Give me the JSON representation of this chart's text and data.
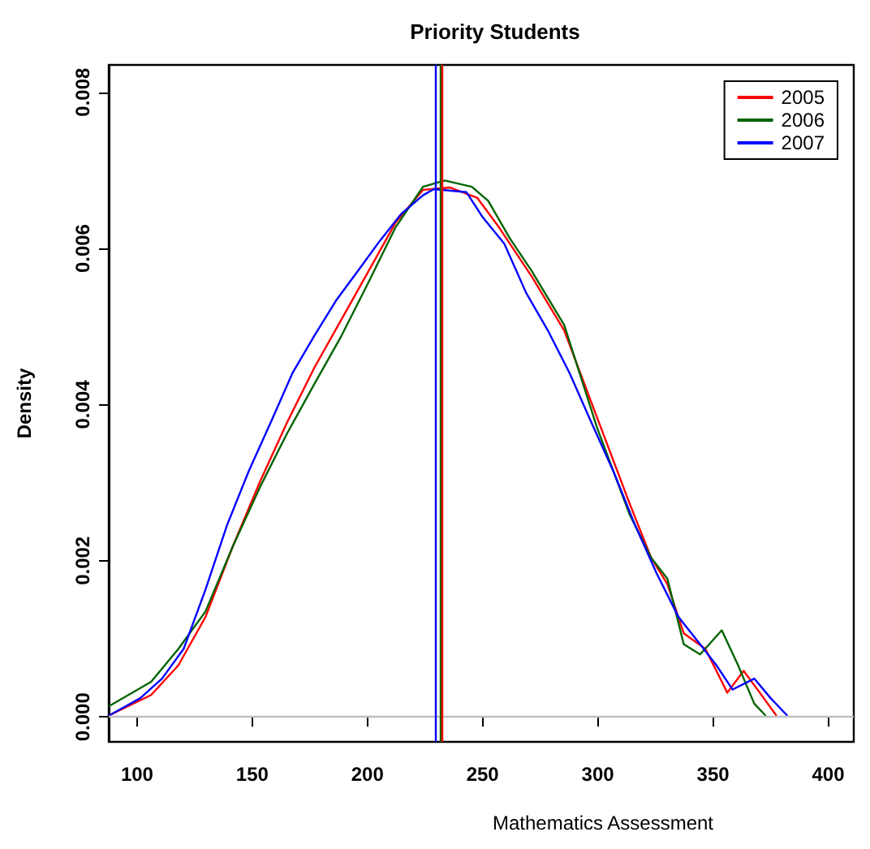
{
  "chart_data": {
    "type": "line",
    "title": "Priority Students",
    "xlabel": "Mathematics Assessment",
    "ylabel": "Density",
    "xlim": [
      87.7,
      411.1
    ],
    "xticks": [
      100,
      150,
      200,
      250,
      300,
      350,
      400
    ],
    "ylim": [
      -0.00032,
      0.00835
    ],
    "yticks": [
      {
        "value": 0,
        "label": "0.000"
      },
      {
        "value": 0.002,
        "label": "0.002"
      },
      {
        "value": 0.004,
        "label": "0.004"
      },
      {
        "value": 0.006,
        "label": "0.006"
      },
      {
        "value": 0.008,
        "label": "0.008"
      }
    ],
    "grid": false,
    "legend": "top right",
    "marker": "none",
    "line_style": "solid",
    "ref_lines": [
      {
        "axis": "y",
        "value": 0,
        "color": "#bebebe"
      },
      {
        "axis": "x",
        "value": 229.4,
        "color": "#0000ff"
      },
      {
        "axis": "x",
        "value": 231.5,
        "color": "#006400"
      },
      {
        "axis": "x",
        "value": 232.3,
        "color": "#ff0000"
      }
    ],
    "series": [
      {
        "name": "2005",
        "color": "#ff0000",
        "x": [
          88,
          106.1,
          117.9,
          129.7,
          141.5,
          153.3,
          165.1,
          176.9,
          188.7,
          200.5,
          212.2,
          224.1,
          235.9,
          247.6,
          257.1,
          271.3,
          285.4,
          299.6,
          313.7,
          323.1,
          330.2,
          337.3,
          346.7,
          356.2,
          363.3,
          370.3,
          377.4
        ],
        "values": [
          2e-05,
          0.00028,
          0.00066,
          0.00128,
          0.00218,
          0.00301,
          0.00377,
          0.00447,
          0.00509,
          0.00571,
          0.00633,
          0.00675,
          0.00678,
          0.00665,
          0.00627,
          0.00564,
          0.00495,
          0.00384,
          0.00274,
          0.00204,
          0.0017,
          0.00107,
          0.00087,
          0.00031,
          0.00059,
          0.00031,
          2e-05
        ]
      },
      {
        "name": "2006",
        "color": "#006400",
        "x": [
          88,
          106.1,
          117.9,
          129.7,
          141.5,
          153.3,
          165.1,
          176.9,
          188.7,
          200.5,
          212.2,
          224.1,
          233.5,
          245.3,
          252.4,
          261.8,
          271.3,
          285.4,
          299.6,
          313.7,
          323.1,
          330.2,
          337.3,
          344.4,
          353.8,
          360.9,
          367.9,
          372.7
        ],
        "values": [
          0.00014,
          0.00045,
          0.00087,
          0.00135,
          0.00218,
          0.00294,
          0.00363,
          0.00426,
          0.00488,
          0.00557,
          0.00627,
          0.00679,
          0.00687,
          0.00679,
          0.00661,
          0.00613,
          0.00571,
          0.00502,
          0.00371,
          0.0026,
          0.00204,
          0.00177,
          0.00093,
          0.0008,
          0.00111,
          0.00066,
          0.00017,
          2e-05
        ]
      },
      {
        "name": "2007",
        "color": "#0000ff",
        "x": [
          88,
          101.4,
          110.8,
          120.2,
          129.7,
          139.1,
          148.5,
          158,
          167.4,
          176.9,
          186.3,
          195.8,
          205.2,
          214.6,
          224.1,
          228.8,
          243,
          250,
          259.4,
          268.9,
          278.3,
          287.8,
          297.2,
          306.7,
          316.1,
          325.5,
          335,
          344.4,
          351.5,
          358.5,
          367.9,
          375,
          382.1
        ],
        "values": [
          2e-05,
          0.00024,
          0.00049,
          0.00087,
          0.00163,
          0.00246,
          0.00315,
          0.00377,
          0.0044,
          0.00488,
          0.00533,
          0.00571,
          0.00609,
          0.00644,
          0.00668,
          0.00676,
          0.00672,
          0.0064,
          0.00606,
          0.00543,
          0.00495,
          0.0044,
          0.00377,
          0.00315,
          0.00246,
          0.00184,
          0.00128,
          0.00093,
          0.00066,
          0.00035,
          0.00049,
          0.00024,
          2e-05
        ]
      }
    ]
  }
}
